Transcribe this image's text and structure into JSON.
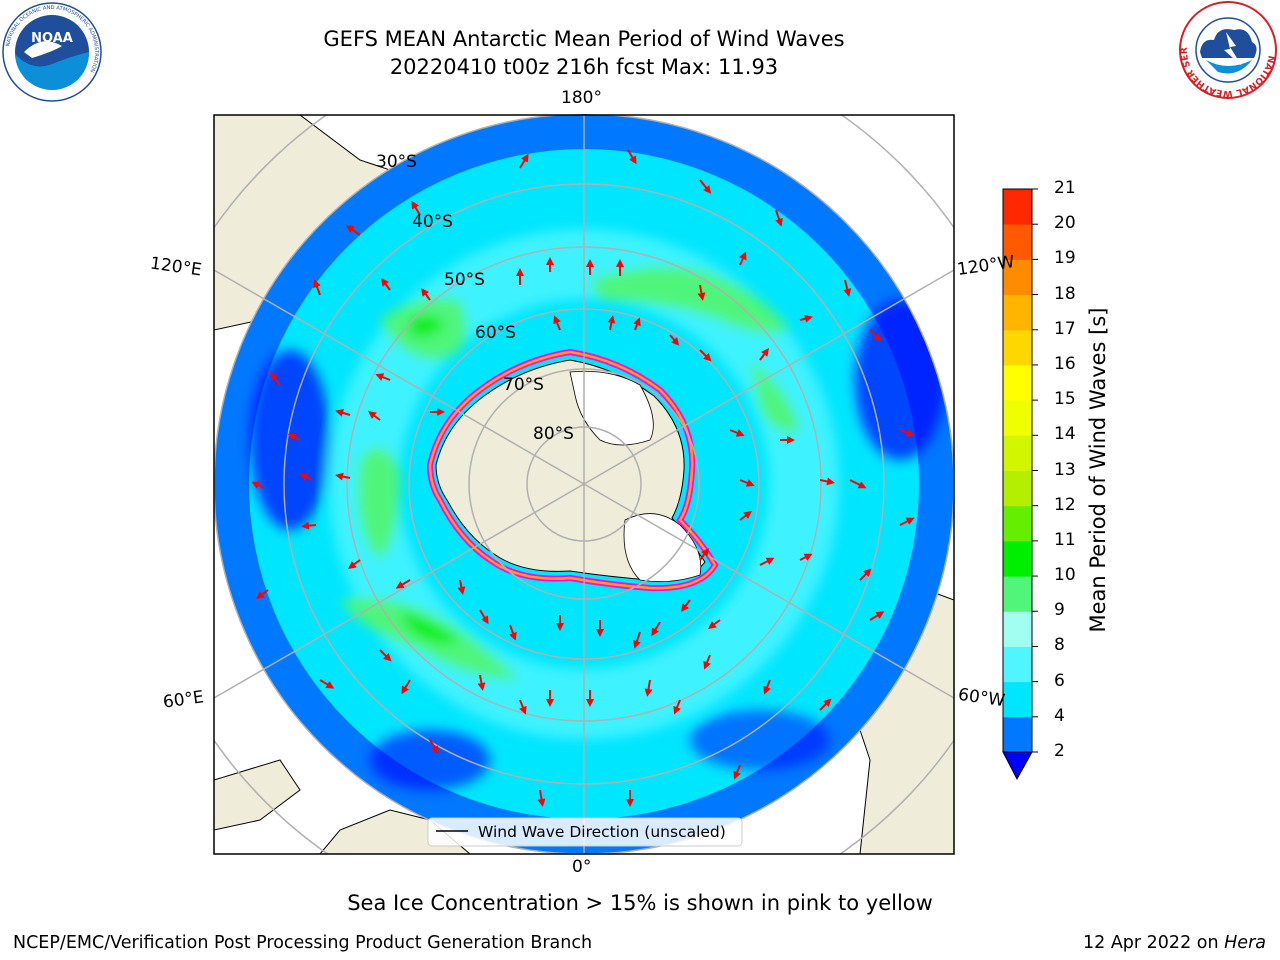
{
  "title": {
    "line1": "GEFS MEAN Antarctic Mean Period of Wind Waves",
    "line2": "20220410 t00z 216h fcst   Max: 11.93"
  },
  "map": {
    "lon_labels": [
      "180°",
      "120°E",
      "120°W",
      "60°E",
      "60°W",
      "0°"
    ],
    "lat_labels": [
      "30°S",
      "40°S",
      "50°S",
      "60°S",
      "70°S",
      "80°S"
    ],
    "legend": "Wind Wave Direction (unscaled)",
    "arrow_color": "#ff0000",
    "land_color": "#efecd9",
    "ice_color": "#ffffff",
    "ice_edge_colors": [
      "#ff00ff",
      "#ffa500",
      "#ffff00"
    ]
  },
  "colorbar": {
    "label": "Mean Period of Wind Waves [s]",
    "ticks": [
      "2",
      "4",
      "6",
      "8",
      "9",
      "10",
      "11",
      "12",
      "13",
      "14",
      "15",
      "16",
      "17",
      "18",
      "19",
      "20",
      "21"
    ],
    "colors": [
      "#0078ff",
      "#00e6ff",
      "#50f5ff",
      "#a0fff0",
      "#50f57a",
      "#00ee00",
      "#64ee00",
      "#b4ee00",
      "#d2f500",
      "#f0ff00",
      "#ffff00",
      "#ffd700",
      "#ffb400",
      "#ff8c00",
      "#ff5a00",
      "#ff2800"
    ],
    "extend_color": "#0000ff"
  },
  "caption": "Sea Ice Concentration > 15% is shown in pink to yellow",
  "footer": {
    "left": "NCEP/EMC/Verification Post Processing Product Generation Branch",
    "right_prefix": "12 Apr 2022 on ",
    "right_host": "Hera"
  },
  "logos": {
    "noaa": "NOAA",
    "nws_ring": "NATIONAL WEATHER SERVICE",
    "noaa_ring": "NATIONAL OCEANIC AND ATMOSPHERIC ADMINISTRATION"
  }
}
